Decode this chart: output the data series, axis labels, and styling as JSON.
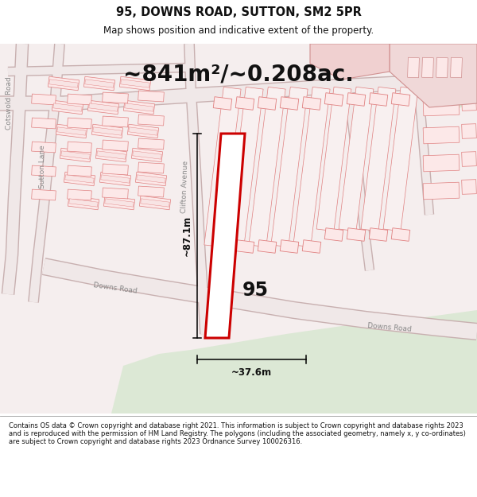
{
  "title_line1": "95, DOWNS ROAD, SUTTON, SM2 5PR",
  "title_line2": "Map shows position and indicative extent of the property.",
  "area_text": "~841m²/~0.208ac.",
  "label_95": "95",
  "dim_vertical": "~87.1m",
  "dim_horizontal": "~37.6m",
  "road_label_clifton": "Clifton Avenue",
  "road_label_downs1": "Downs Road",
  "road_label_downs2": "Downs Road",
  "road_label_cotswold": "Cotswold Road",
  "road_label_sutton": "Sutton Lane",
  "footer_text": "Contains OS data © Crown copyright and database right 2021. This information is subject to Crown copyright and database rights 2023 and is reproduced with the permission of HM Land Registry. The polygons (including the associated geometry, namely x, y co-ordinates) are subject to Crown copyright and database rights 2023 Ordnance Survey 100026316.",
  "map_bg": "#f5eeee",
  "plot_color": "#cc0000",
  "road_fill": "#f0e8e8",
  "road_edge": "#c8b0b0",
  "building_fill": "#fce8e8",
  "building_edge": "#e08080",
  "green_fill": "#dce8d5",
  "white": "#ffffff",
  "gray_light": "#e8e0e0"
}
